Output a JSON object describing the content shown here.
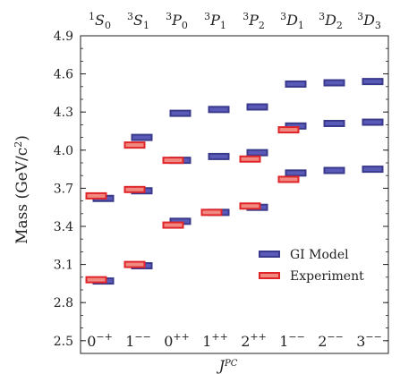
{
  "chart_data": {
    "type": "scatter",
    "xlabel": "J^{PC}",
    "ylabel": "Mass (GeV/c²)",
    "ylim": [
      2.4,
      4.9
    ],
    "yticks": [
      2.5,
      2.8,
      3.1,
      3.4,
      3.7,
      4.0,
      4.3,
      4.6,
      4.9
    ],
    "ytick_labels": [
      "2.5",
      "2.8",
      "3.1",
      "3.4",
      "3.7",
      "4.0",
      "4.3",
      "4.6",
      "4.9"
    ],
    "top_labels": [
      {
        "base": "S",
        "sup": "1",
        "sub": "0"
      },
      {
        "base": "S",
        "sup": "3",
        "sub": "1"
      },
      {
        "base": "P",
        "sup": "3",
        "sub": "0"
      },
      {
        "base": "P",
        "sup": "3",
        "sub": "1"
      },
      {
        "base": "P",
        "sup": "3",
        "sub": "2"
      },
      {
        "base": "D",
        "sup": "3",
        "sub": "1"
      },
      {
        "base": "D",
        "sup": "3",
        "sub": "2"
      },
      {
        "base": "D",
        "sup": "3",
        "sub": "3"
      }
    ],
    "bottom_labels": [
      {
        "j": "0",
        "pc": "−+"
      },
      {
        "j": "1",
        "pc": "−−"
      },
      {
        "j": "0",
        "pc": "++"
      },
      {
        "j": "1",
        "pc": "++"
      },
      {
        "j": "2",
        "pc": "++"
      },
      {
        "j": "1",
        "pc": "−−"
      },
      {
        "j": "2",
        "pc": "−−"
      },
      {
        "j": "3",
        "pc": "−−"
      }
    ],
    "legend_position": "lower-right",
    "series": [
      {
        "name": "GI Model",
        "color": "#3a3a8c",
        "fill": "#5a5ab8",
        "points": [
          {
            "col": 0,
            "mass": 2.97
          },
          {
            "col": 0,
            "mass": 3.62
          },
          {
            "col": 1,
            "mass": 3.09
          },
          {
            "col": 1,
            "mass": 3.68
          },
          {
            "col": 1,
            "mass": 4.1
          },
          {
            "col": 2,
            "mass": 3.44
          },
          {
            "col": 2,
            "mass": 3.92
          },
          {
            "col": 2,
            "mass": 4.29
          },
          {
            "col": 3,
            "mass": 3.51
          },
          {
            "col": 3,
            "mass": 3.95
          },
          {
            "col": 3,
            "mass": 4.32
          },
          {
            "col": 4,
            "mass": 3.55
          },
          {
            "col": 4,
            "mass": 3.98
          },
          {
            "col": 4,
            "mass": 4.34
          },
          {
            "col": 5,
            "mass": 3.82
          },
          {
            "col": 5,
            "mass": 4.19
          },
          {
            "col": 5,
            "mass": 4.52
          },
          {
            "col": 6,
            "mass": 3.84
          },
          {
            "col": 6,
            "mass": 4.21
          },
          {
            "col": 6,
            "mass": 4.53
          },
          {
            "col": 7,
            "mass": 3.85
          },
          {
            "col": 7,
            "mass": 4.22
          },
          {
            "col": 7,
            "mass": 4.54
          }
        ]
      },
      {
        "name": "Experiment",
        "color": "#e0252a",
        "fill": "#f08a80",
        "points": [
          {
            "col": 0,
            "mass": 2.98
          },
          {
            "col": 0,
            "mass": 3.64
          },
          {
            "col": 1,
            "mass": 3.1
          },
          {
            "col": 1,
            "mass": 3.69
          },
          {
            "col": 1,
            "mass": 4.04
          },
          {
            "col": 2,
            "mass": 3.41
          },
          {
            "col": 2,
            "mass": 3.92
          },
          {
            "col": 3,
            "mass": 3.51
          },
          {
            "col": 4,
            "mass": 3.56
          },
          {
            "col": 4,
            "mass": 3.93
          },
          {
            "col": 5,
            "mass": 3.77
          },
          {
            "col": 5,
            "mass": 4.16
          }
        ]
      }
    ]
  }
}
